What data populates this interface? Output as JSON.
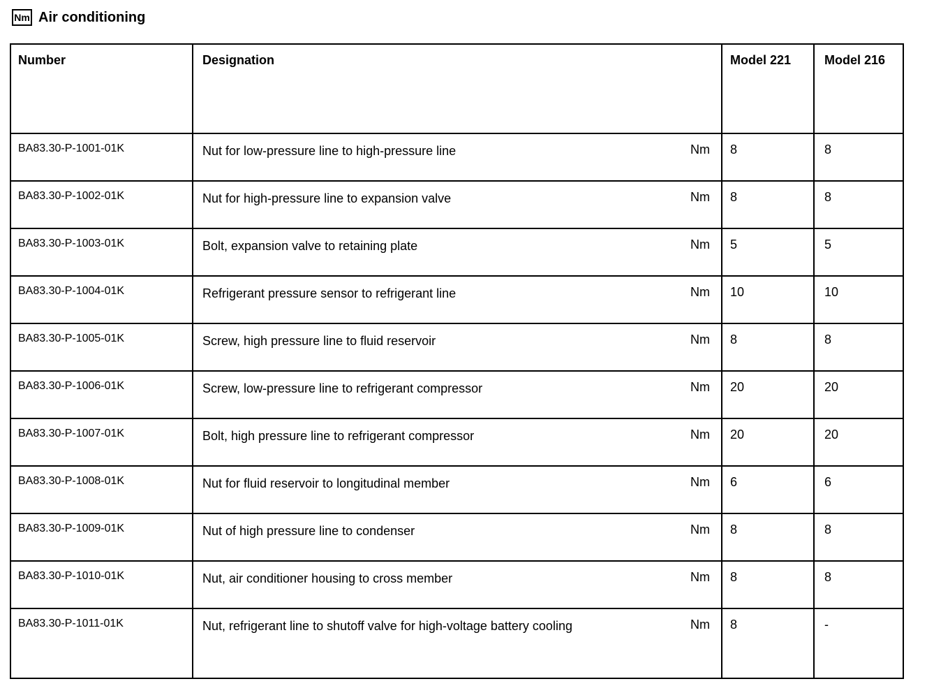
{
  "page": {
    "title": "Air conditioning",
    "title_icon": "Nm"
  },
  "colors": {
    "text": "#000000",
    "border": "#000000",
    "background": "#ffffff"
  },
  "table": {
    "headers": {
      "number": "Number",
      "designation": "Designation",
      "model221": "Model 221",
      "model216": "Model 216"
    },
    "rows": [
      {
        "number": "BA83.30-P-1001-01K",
        "designation": "Nut for low-pressure line to high-pressure line",
        "unit": "Nm",
        "model221": "8",
        "model216": "8"
      },
      {
        "number": "BA83.30-P-1002-01K",
        "designation": "Nut for high-pressure line to expansion valve",
        "unit": "Nm",
        "model221": "8",
        "model216": "8"
      },
      {
        "number": "BA83.30-P-1003-01K",
        "designation": "Bolt, expansion valve to retaining plate",
        "unit": "Nm",
        "model221": "5",
        "model216": "5"
      },
      {
        "number": "BA83.30-P-1004-01K",
        "designation": "Refrigerant pressure sensor to refrigerant line",
        "unit": "Nm",
        "model221": "10",
        "model216": "10"
      },
      {
        "number": "BA83.30-P-1005-01K",
        "designation": "Screw, high pressure line to fluid reservoir",
        "unit": "Nm",
        "model221": "8",
        "model216": "8"
      },
      {
        "number": "BA83.30-P-1006-01K",
        "designation": "Screw, low-pressure line to refrigerant compressor",
        "unit": "Nm",
        "model221": "20",
        "model216": "20"
      },
      {
        "number": "BA83.30-P-1007-01K",
        "designation": "Bolt, high pressure line to refrigerant compressor",
        "unit": "Nm",
        "model221": "20",
        "model216": "20"
      },
      {
        "number": "BA83.30-P-1008-01K",
        "designation": "Nut for fluid reservoir to longitudinal member",
        "unit": "Nm",
        "model221": "6",
        "model216": "6"
      },
      {
        "number": "BA83.30-P-1009-01K",
        "designation": "Nut of high pressure line to condenser",
        "unit": "Nm",
        "model221": "8",
        "model216": "8"
      },
      {
        "number": "BA83.30-P-1010-01K",
        "designation": "Nut, air conditioner housing to cross member",
        "unit": "Nm",
        "model221": "8",
        "model216": "8"
      },
      {
        "number": "BA83.30-P-1011-01K",
        "designation": "Nut, refrigerant line to shutoff valve for high-voltage battery cooling",
        "unit": "Nm",
        "model221": "8",
        "model216": "-"
      }
    ]
  }
}
